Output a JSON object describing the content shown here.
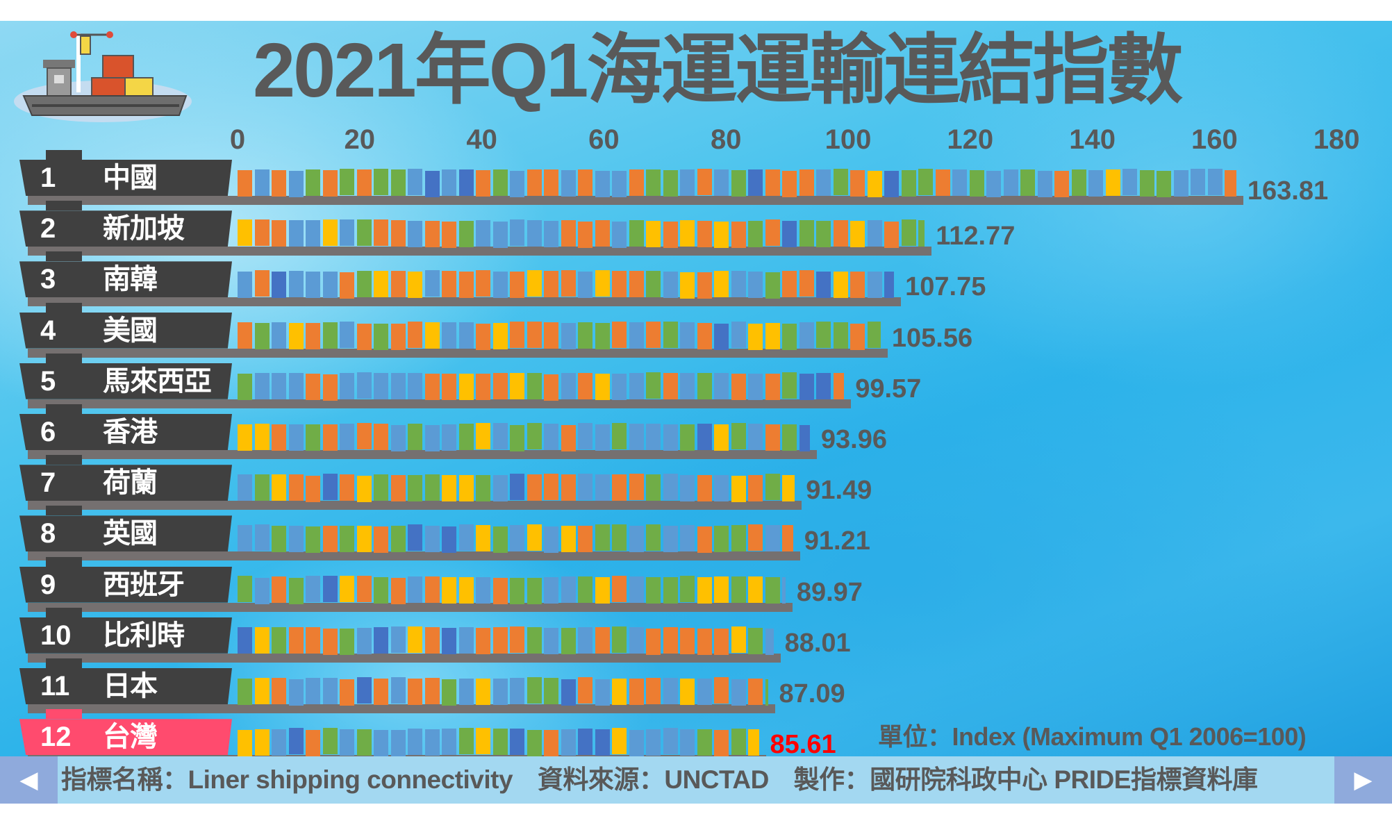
{
  "title": "2021年Q1海運運輸連結指數",
  "unit_label": "單位：Index (Maximum Q1 2006=100)",
  "footer": {
    "indicator": "指標名稱：Liner shipping connectivity",
    "source": "資料來源：UNCTAD",
    "producer": "製作：國研院科政中心  PRIDE指標資料庫",
    "prev_label": "◀",
    "next_label": "▶"
  },
  "colors": {
    "container": [
      "#5b9bd5",
      "#ed7d31",
      "#70ad47",
      "#ffc000",
      "#4472c4"
    ],
    "label_box": "#404040",
    "highlight": "#ff4b6e",
    "highlight_value": "#ff0000"
  },
  "chart_data": {
    "type": "bar",
    "orientation": "horizontal",
    "title": "2021年Q1海運運輸連結指數",
    "xlabel": "單位：Index (Maximum Q1 2006=100)",
    "xlim": [
      0,
      180
    ],
    "xticks": [
      "0",
      "20",
      "40",
      "60",
      "80",
      "100",
      "120",
      "140",
      "160",
      "180"
    ],
    "ranks": [
      "1",
      "2",
      "3",
      "4",
      "5",
      "6",
      "7",
      "8",
      "9",
      "10",
      "11",
      "12"
    ],
    "categories": [
      "中國",
      "新加坡",
      "南韓",
      "美國",
      "馬來西亞",
      "香港",
      "荷蘭",
      "英國",
      "西班牙",
      "比利時",
      "日本",
      "台灣"
    ],
    "values": [
      163.81,
      112.77,
      107.75,
      105.56,
      99.57,
      93.96,
      91.49,
      91.21,
      89.97,
      88.01,
      87.09,
      85.61
    ],
    "value_labels": [
      "163.81",
      "112.77",
      "107.75",
      "105.56",
      "99.57",
      "93.96",
      "91.49",
      "91.21",
      "89.97",
      "88.01",
      "87.09",
      "85.61"
    ],
    "highlight": "台灣"
  }
}
